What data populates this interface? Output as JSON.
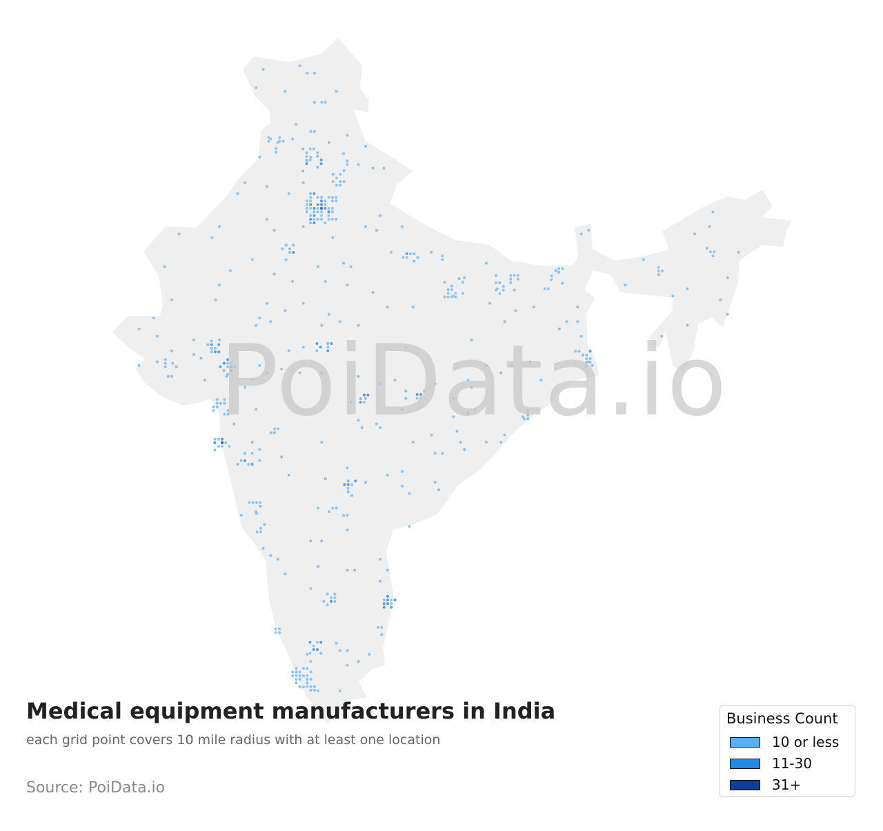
{
  "title": "Medical equipment manufacturers in India",
  "subtitle": "each grid point covers 10 mile radius with at least one location",
  "source": "Source: PoiData.io",
  "watermark": "PoiData.io",
  "map": {
    "region": "India",
    "land_color": "#efefef"
  },
  "legend": {
    "title": "Business Count",
    "items": [
      {
        "label": "10 or less",
        "color": "#5aaef2"
      },
      {
        "label": "11-30",
        "color": "#1f8ae8"
      },
      {
        "label": "31+",
        "color": "#0b3f9a"
      }
    ]
  },
  "point_colors": {
    "low": "#8ec4f0",
    "mid": "#5a9ee0",
    "high": "#3d6bb0"
  }
}
